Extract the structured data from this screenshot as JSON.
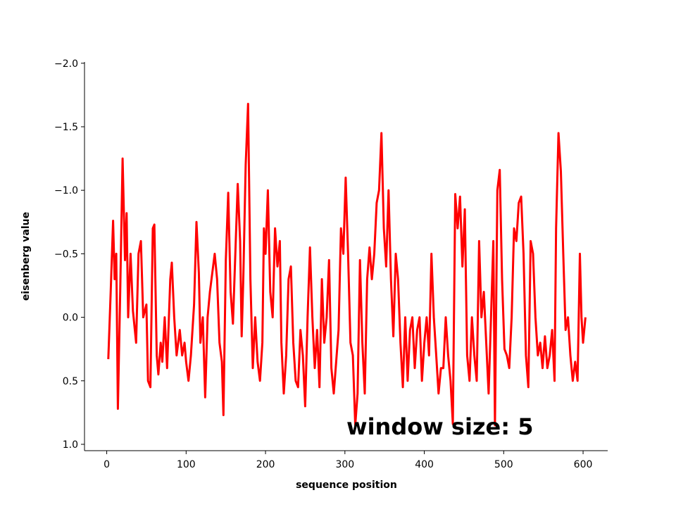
{
  "chart_data": {
    "type": "line",
    "xlabel": "sequence position",
    "ylabel": "eisenberg value",
    "annotation": "window size: 5",
    "x": [
      2,
      5,
      8,
      10,
      12,
      14,
      17,
      20,
      23,
      25,
      27,
      30,
      33,
      37,
      40,
      43,
      46,
      50,
      52,
      55,
      58,
      60,
      63,
      65,
      68,
      70,
      73,
      76,
      80,
      82,
      85,
      88,
      92,
      95,
      98,
      100,
      103,
      106,
      110,
      113,
      116,
      118,
      121,
      124,
      127,
      130,
      133,
      136,
      139,
      142,
      145,
      147,
      150,
      153,
      156,
      159,
      162,
      165,
      168,
      170,
      172,
      175,
      178,
      181,
      184,
      187,
      190,
      193,
      196,
      198,
      200,
      203,
      206,
      209,
      212,
      215,
      218,
      220,
      223,
      226,
      229,
      232,
      235,
      238,
      241,
      244,
      247,
      250,
      253,
      256,
      259,
      262,
      265,
      268,
      271,
      274,
      277,
      280,
      283,
      286,
      289,
      292,
      295,
      298,
      301,
      304,
      307,
      310,
      313,
      316,
      319,
      322,
      325,
      328,
      331,
      334,
      337,
      340,
      343,
      346,
      349,
      352,
      355,
      358,
      361,
      364,
      367,
      370,
      373,
      376,
      379,
      382,
      385,
      388,
      391,
      394,
      397,
      400,
      403,
      406,
      409,
      412,
      415,
      418,
      421,
      424,
      427,
      430,
      433,
      436,
      439,
      442,
      445,
      448,
      451,
      454,
      457,
      460,
      463,
      466,
      469,
      472,
      475,
      478,
      481,
      484,
      487,
      489,
      492,
      495,
      498,
      501,
      504,
      507,
      510,
      513,
      516,
      519,
      522,
      525,
      528,
      531,
      534,
      537,
      540,
      543,
      546,
      549,
      552,
      555,
      558,
      561,
      564,
      566,
      569,
      572,
      575,
      578,
      581,
      584,
      587,
      590,
      593,
      596,
      598,
      600,
      603
    ],
    "series": [
      {
        "name": "eisenberg",
        "color": "#ff0000",
        "values": [
          0.33,
          -0.2,
          -0.76,
          -0.3,
          -0.5,
          0.72,
          -0.2,
          -1.25,
          -0.45,
          -0.82,
          0.0,
          -0.5,
          -0.05,
          0.2,
          -0.5,
          -0.6,
          0.0,
          -0.1,
          0.5,
          0.55,
          -0.7,
          -0.73,
          0.3,
          0.45,
          0.2,
          0.35,
          0.0,
          0.4,
          -0.3,
          -0.43,
          0.0,
          0.3,
          0.1,
          0.3,
          0.2,
          0.35,
          0.5,
          0.3,
          -0.1,
          -0.75,
          -0.35,
          0.2,
          0.0,
          0.63,
          0.0,
          -0.2,
          -0.35,
          -0.5,
          -0.3,
          0.2,
          0.35,
          0.77,
          -0.45,
          -0.98,
          -0.2,
          0.05,
          -0.5,
          -1.05,
          -0.6,
          0.15,
          -0.3,
          -1.2,
          -1.68,
          -0.3,
          0.4,
          0.0,
          0.35,
          0.5,
          0.2,
          -0.7,
          -0.5,
          -1.0,
          -0.2,
          0.0,
          -0.7,
          -0.4,
          -0.6,
          0.2,
          0.6,
          0.3,
          -0.3,
          -0.4,
          0.2,
          0.5,
          0.55,
          0.1,
          0.3,
          0.7,
          0.0,
          -0.55,
          0.0,
          0.4,
          0.1,
          0.55,
          -0.3,
          0.2,
          0.0,
          -0.45,
          0.4,
          0.6,
          0.35,
          0.1,
          -0.7,
          -0.5,
          -1.1,
          -0.5,
          0.2,
          0.3,
          0.85,
          0.6,
          -0.45,
          0.2,
          0.6,
          -0.3,
          -0.55,
          -0.3,
          -0.5,
          -0.9,
          -1.0,
          -1.45,
          -0.7,
          -0.4,
          -1.0,
          -0.3,
          0.15,
          -0.5,
          -0.3,
          0.2,
          0.55,
          0.0,
          0.5,
          0.1,
          0.0,
          0.4,
          0.1,
          0.0,
          0.5,
          0.2,
          0.0,
          0.3,
          -0.5,
          0.0,
          0.3,
          0.6,
          0.4,
          0.4,
          0.0,
          0.3,
          0.5,
          0.84,
          -0.97,
          -0.7,
          -0.95,
          -0.4,
          -0.85,
          0.3,
          0.5,
          0.0,
          0.3,
          0.5,
          -0.6,
          0.0,
          -0.2,
          0.2,
          0.6,
          0.0,
          -0.6,
          0.85,
          -1.0,
          -1.16,
          -0.3,
          0.25,
          0.3,
          0.4,
          0.0,
          -0.7,
          -0.6,
          -0.9,
          -0.95,
          -0.5,
          0.3,
          0.55,
          -0.6,
          -0.5,
          0.0,
          0.3,
          0.2,
          0.4,
          0.15,
          0.4,
          0.3,
          0.1,
          0.5,
          -0.7,
          -1.45,
          -1.15,
          -0.5,
          0.1,
          0.0,
          0.3,
          0.5,
          0.35,
          0.5,
          -0.5,
          0.0,
          0.2,
          0.0
        ]
      }
    ],
    "xlim": [
      -28,
      631
    ],
    "xticks": [
      0,
      100,
      200,
      300,
      400,
      500,
      600
    ],
    "ylim": [
      1.05,
      -2.01
    ],
    "yticks": [
      {
        "value": -2.0,
        "label": "−2.0"
      },
      {
        "value": -1.5,
        "label": "−1.5"
      },
      {
        "value": -1.0,
        "label": "−1.0"
      },
      {
        "value": -0.5,
        "label": "−0.5"
      },
      {
        "value": 0.0,
        "label": "0.0"
      },
      {
        "value": 0.5,
        "label": "0.5"
      },
      {
        "value": 1.0,
        "label": "1.0"
      }
    ],
    "grid": false
  }
}
